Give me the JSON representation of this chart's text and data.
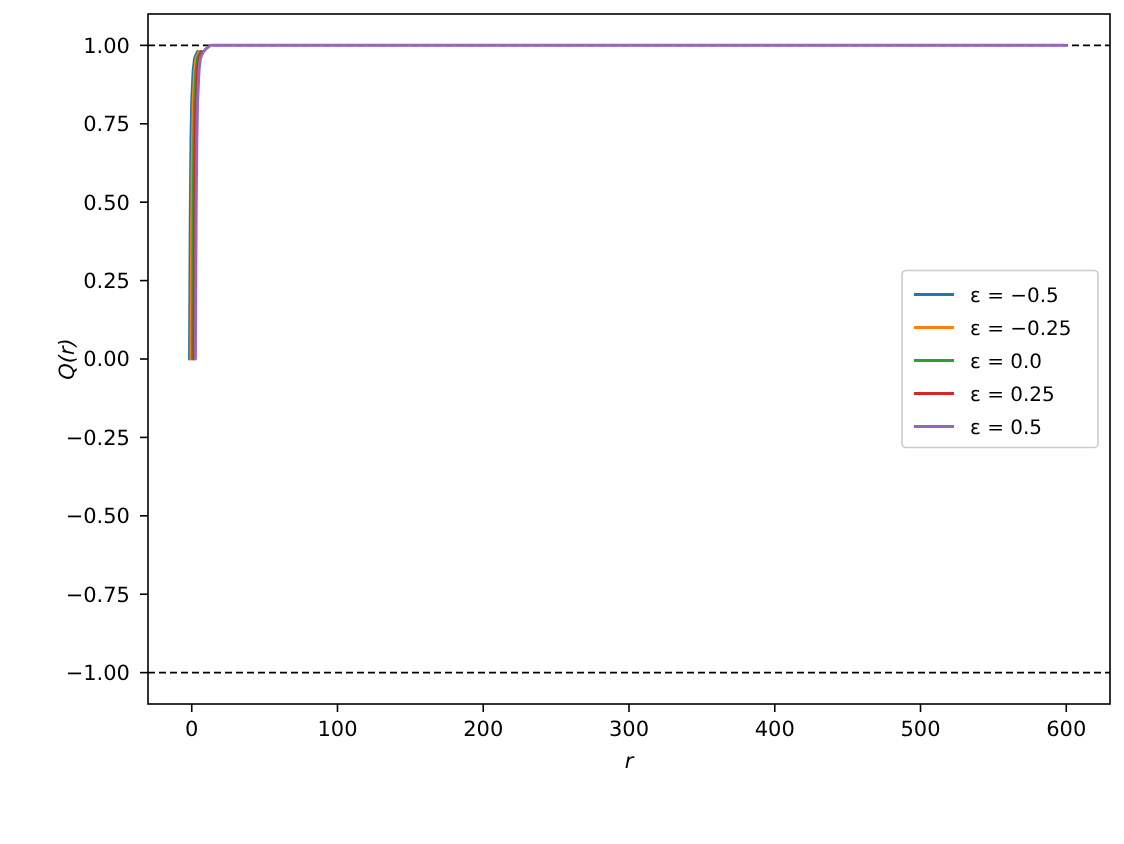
{
  "chart_data": {
    "type": "line",
    "xlabel": "r",
    "ylabel": "Q(r)",
    "xlim": [
      -30,
      630
    ],
    "ylim": [
      -1.1,
      1.1
    ],
    "xticks": [
      0,
      100,
      200,
      300,
      400,
      500,
      600
    ],
    "yticks": [
      {
        "value": -1,
        "label": "−1.00"
      },
      {
        "value": -0.75,
        "label": "−0.75"
      },
      {
        "value": -0.5,
        "label": "−0.50"
      },
      {
        "value": -0.25,
        "label": "−0.25"
      },
      {
        "value": 0,
        "label": "0.00"
      },
      {
        "value": 0.25,
        "label": "0.25"
      },
      {
        "value": 0.5,
        "label": "0.50"
      },
      {
        "value": 0.75,
        "label": "0.75"
      },
      {
        "value": 1,
        "label": "1.00"
      }
    ],
    "series": [
      {
        "name": "ε = −0.5",
        "color": "#1f77b4",
        "x": [
          -1.5,
          -1,
          -0.5,
          0,
          1,
          2,
          4
        ],
        "values": [
          0,
          0.45,
          0.7,
          0.82,
          0.92,
          0.96,
          0.98
        ]
      },
      {
        "name": "ε = −0.25",
        "color": "#ff7f0e",
        "x": [
          -0.5,
          0,
          0.5,
          1,
          2,
          3,
          5
        ],
        "values": [
          0,
          0.45,
          0.7,
          0.82,
          0.92,
          0.96,
          0.98
        ]
      },
      {
        "name": "ε = 0.0",
        "color": "#2ca02c",
        "x": [
          0.5,
          1,
          1.5,
          2,
          3,
          4,
          6
        ],
        "values": [
          0,
          0.45,
          0.7,
          0.82,
          0.92,
          0.96,
          0.98
        ]
      },
      {
        "name": "ε = 0.25",
        "color": "#d62728",
        "x": [
          1.5,
          2,
          2.5,
          3,
          4,
          5,
          7
        ],
        "values": [
          0,
          0.45,
          0.7,
          0.82,
          0.92,
          0.96,
          0.98
        ]
      },
      {
        "name": "ε = 0.5",
        "color": "#9467bd",
        "x": [
          2.5,
          3,
          3.5,
          4,
          5,
          6,
          8,
          10,
          13,
          20,
          100,
          200,
          300,
          400,
          500,
          600
        ],
        "values": [
          0,
          0.45,
          0.7,
          0.82,
          0.92,
          0.96,
          0.98,
          0.99,
          1,
          1,
          1,
          1,
          1,
          1,
          1,
          1
        ]
      }
    ],
    "ref_lines": [
      {
        "axis": "y",
        "value": 1,
        "color": "#000000",
        "line_style": "dashed"
      },
      {
        "axis": "y",
        "value": -1,
        "color": "#000000",
        "line_style": "dashed"
      }
    ],
    "legend": "right"
  }
}
